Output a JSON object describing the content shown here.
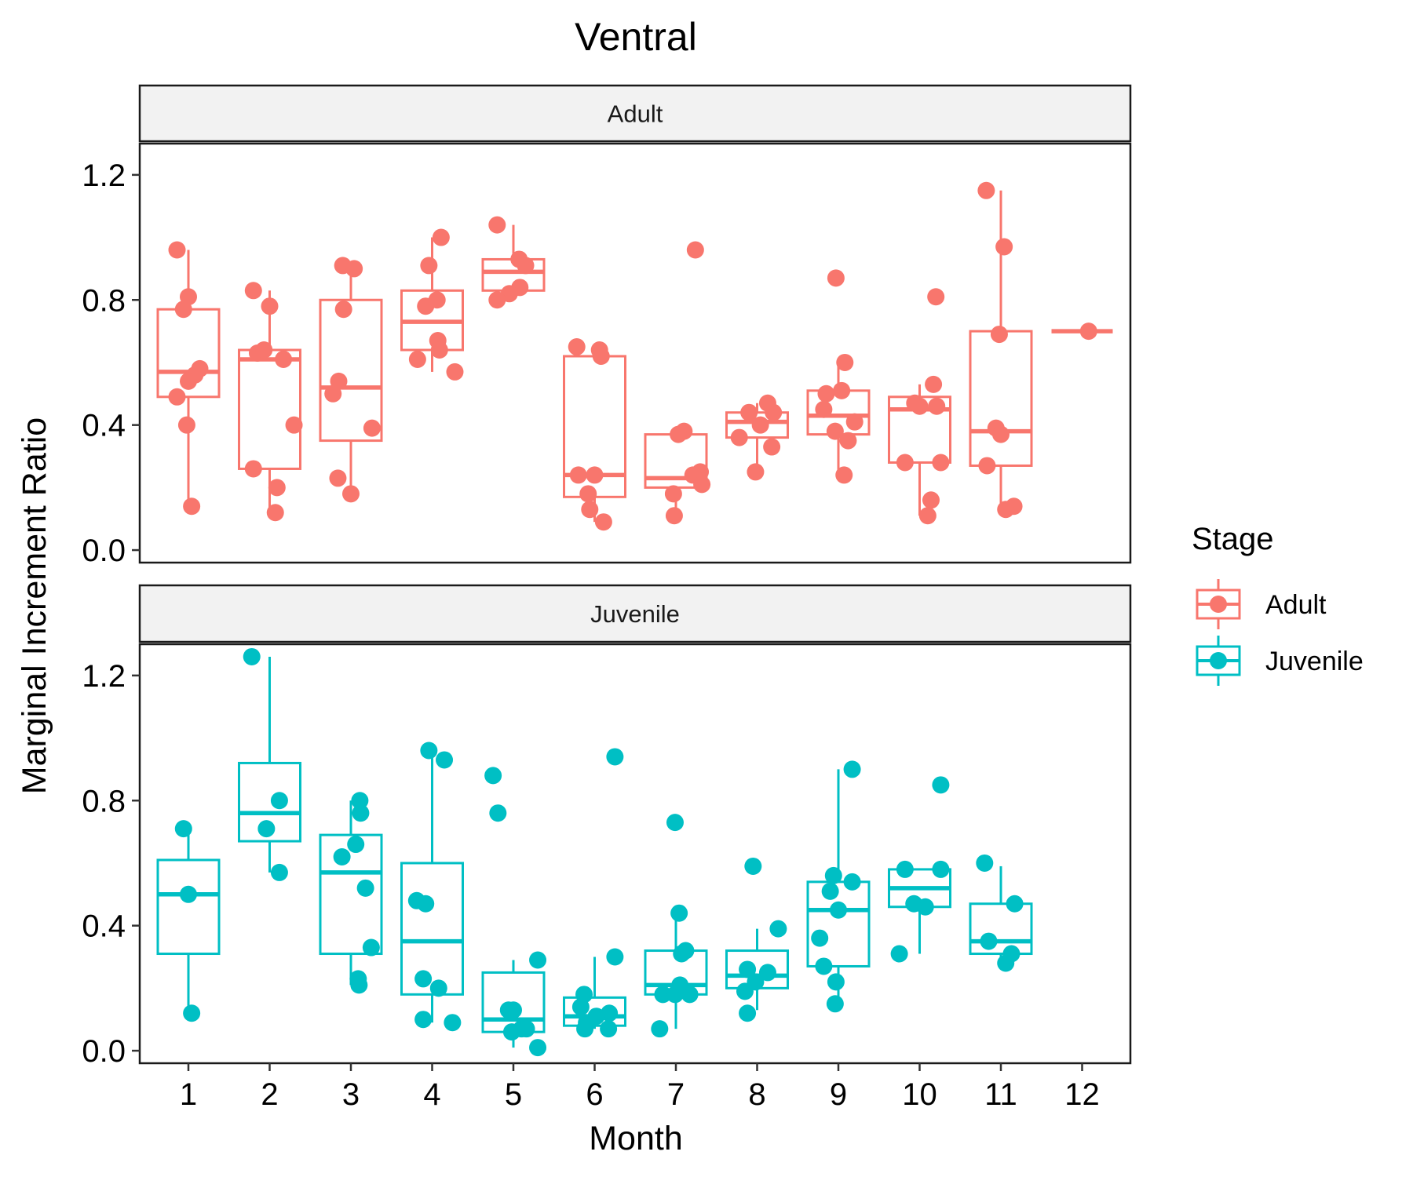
{
  "chart_data": {
    "type": "boxplot",
    "title": "Ventral",
    "xlabel": "Month",
    "ylabel": "Marginal Increment Ratio",
    "x_ticks": [
      "1",
      "2",
      "3",
      "4",
      "5",
      "6",
      "7",
      "8",
      "9",
      "10",
      "11",
      "12"
    ],
    "y_ticks": [
      "0.0",
      "0.4",
      "0.8",
      "1.2"
    ],
    "ylim": [
      -0.04,
      1.3
    ],
    "grid": false,
    "legend": {
      "title": "Stage",
      "position": "right",
      "entries": [
        {
          "label": "Adult",
          "color": "#F8766D"
        },
        {
          "label": "Juvenile",
          "color": "#00BFC4"
        }
      ]
    },
    "panels": [
      {
        "name": "Adult",
        "color": "#F8766D",
        "boxes": [
          {
            "month": 1,
            "min": 0.14,
            "q1": 0.49,
            "median": 0.57,
            "q3": 0.77,
            "max": 0.96
          },
          {
            "month": 2,
            "min": 0.12,
            "q1": 0.26,
            "median": 0.61,
            "q3": 0.64,
            "max": 0.83
          },
          {
            "month": 3,
            "min": 0.18,
            "q1": 0.35,
            "median": 0.52,
            "q3": 0.8,
            "max": 0.9
          },
          {
            "month": 4,
            "min": 0.57,
            "q1": 0.64,
            "median": 0.73,
            "q3": 0.83,
            "max": 1.0
          },
          {
            "month": 5,
            "min": 0.8,
            "q1": 0.83,
            "median": 0.89,
            "q3": 0.93,
            "max": 1.04
          },
          {
            "month": 6,
            "min": 0.09,
            "q1": 0.17,
            "median": 0.24,
            "q3": 0.62,
            "max": 0.65
          },
          {
            "month": 7,
            "min": 0.11,
            "q1": 0.2,
            "median": 0.23,
            "q3": 0.37,
            "max": 0.38
          },
          {
            "month": 8,
            "min": 0.25,
            "q1": 0.36,
            "median": 0.41,
            "q3": 0.44,
            "max": 0.47
          },
          {
            "month": 9,
            "min": 0.24,
            "q1": 0.37,
            "median": 0.43,
            "q3": 0.51,
            "max": 0.6
          },
          {
            "month": 10,
            "min": 0.11,
            "q1": 0.28,
            "median": 0.45,
            "q3": 0.49,
            "max": 0.53
          },
          {
            "month": 11,
            "min": 0.13,
            "q1": 0.27,
            "median": 0.38,
            "q3": 0.7,
            "max": 1.15
          },
          {
            "month": 12,
            "min": 0.7,
            "q1": 0.7,
            "median": 0.7,
            "q3": 0.7,
            "max": 0.7
          }
        ],
        "points": [
          [
            0.86,
            0.96
          ],
          [
            1.0,
            0.81
          ],
          [
            0.94,
            0.77
          ],
          [
            1.14,
            0.58
          ],
          [
            1.08,
            0.56
          ],
          [
            1.0,
            0.54
          ],
          [
            0.86,
            0.49
          ],
          [
            0.98,
            0.4
          ],
          [
            1.04,
            0.14
          ],
          [
            1.8,
            0.83
          ],
          [
            2.0,
            0.78
          ],
          [
            1.85,
            0.63
          ],
          [
            1.93,
            0.64
          ],
          [
            2.17,
            0.61
          ],
          [
            2.3,
            0.4
          ],
          [
            1.8,
            0.26
          ],
          [
            2.09,
            0.2
          ],
          [
            2.07,
            0.12
          ],
          [
            2.9,
            0.91
          ],
          [
            3.04,
            0.9
          ],
          [
            2.91,
            0.77
          ],
          [
            2.85,
            0.54
          ],
          [
            2.78,
            0.5
          ],
          [
            3.26,
            0.39
          ],
          [
            2.84,
            0.23
          ],
          [
            3.0,
            0.18
          ],
          [
            4.11,
            1.0
          ],
          [
            3.96,
            0.91
          ],
          [
            4.06,
            0.8
          ],
          [
            3.92,
            0.78
          ],
          [
            4.07,
            0.67
          ],
          [
            4.09,
            0.64
          ],
          [
            3.82,
            0.61
          ],
          [
            4.28,
            0.57
          ],
          [
            4.8,
            1.04
          ],
          [
            5.07,
            0.93
          ],
          [
            5.15,
            0.91
          ],
          [
            5.08,
            0.84
          ],
          [
            4.95,
            0.82
          ],
          [
            4.8,
            0.8
          ],
          [
            5.78,
            0.65
          ],
          [
            6.06,
            0.64
          ],
          [
            6.08,
            0.62
          ],
          [
            5.8,
            0.24
          ],
          [
            6.0,
            0.24
          ],
          [
            5.92,
            0.18
          ],
          [
            5.94,
            0.13
          ],
          [
            6.11,
            0.09
          ],
          [
            7.24,
            0.96
          ],
          [
            7.1,
            0.38
          ],
          [
            7.03,
            0.37
          ],
          [
            7.3,
            0.25
          ],
          [
            7.21,
            0.24
          ],
          [
            7.32,
            0.21
          ],
          [
            6.97,
            0.18
          ],
          [
            6.98,
            0.11
          ],
          [
            7.9,
            0.44
          ],
          [
            8.2,
            0.44
          ],
          [
            8.13,
            0.47
          ],
          [
            8.04,
            0.4
          ],
          [
            7.78,
            0.36
          ],
          [
            8.18,
            0.33
          ],
          [
            7.98,
            0.25
          ],
          [
            8.97,
            0.87
          ],
          [
            9.08,
            0.6
          ],
          [
            8.85,
            0.5
          ],
          [
            9.04,
            0.51
          ],
          [
            8.82,
            0.45
          ],
          [
            9.2,
            0.41
          ],
          [
            8.96,
            0.38
          ],
          [
            9.12,
            0.35
          ],
          [
            9.07,
            0.24
          ],
          [
            10.2,
            0.81
          ],
          [
            10.17,
            0.53
          ],
          [
            9.94,
            0.47
          ],
          [
            10.0,
            0.46
          ],
          [
            10.21,
            0.46
          ],
          [
            9.82,
            0.28
          ],
          [
            10.26,
            0.28
          ],
          [
            10.14,
            0.16
          ],
          [
            10.1,
            0.11
          ],
          [
            10.82,
            1.15
          ],
          [
            11.04,
            0.97
          ],
          [
            10.98,
            0.69
          ],
          [
            10.94,
            0.39
          ],
          [
            11.0,
            0.37
          ],
          [
            10.83,
            0.27
          ],
          [
            11.16,
            0.14
          ],
          [
            11.06,
            0.13
          ],
          [
            12.08,
            0.7
          ]
        ]
      },
      {
        "name": "Juvenile",
        "color": "#00BFC4",
        "boxes": [
          {
            "month": 1,
            "min": 0.12,
            "q1": 0.31,
            "median": 0.5,
            "q3": 0.61,
            "max": 0.71
          },
          {
            "month": 2,
            "min": 0.57,
            "q1": 0.67,
            "median": 0.76,
            "q3": 0.92,
            "max": 1.26
          },
          {
            "month": 3,
            "min": 0.21,
            "q1": 0.31,
            "median": 0.57,
            "q3": 0.69,
            "max": 0.8
          },
          {
            "month": 4,
            "min": 0.09,
            "q1": 0.18,
            "median": 0.35,
            "q3": 0.6,
            "max": 0.96
          },
          {
            "month": 5,
            "min": 0.01,
            "q1": 0.06,
            "median": 0.1,
            "q3": 0.25,
            "max": 0.29
          },
          {
            "month": 6,
            "min": 0.07,
            "q1": 0.08,
            "median": 0.11,
            "q3": 0.17,
            "max": 0.3
          },
          {
            "month": 7,
            "min": 0.07,
            "q1": 0.18,
            "median": 0.21,
            "q3": 0.32,
            "max": 0.44
          },
          {
            "month": 8,
            "min": 0.13,
            "q1": 0.2,
            "median": 0.24,
            "q3": 0.32,
            "max": 0.39
          },
          {
            "month": 9,
            "min": 0.15,
            "q1": 0.27,
            "median": 0.45,
            "q3": 0.54,
            "max": 0.9
          },
          {
            "month": 10,
            "min": 0.31,
            "q1": 0.46,
            "median": 0.52,
            "q3": 0.58,
            "max": 0.58
          },
          {
            "month": 11,
            "min": 0.28,
            "q1": 0.31,
            "median": 0.35,
            "q3": 0.47,
            "max": 0.59
          }
        ],
        "points": [
          [
            0.94,
            0.71
          ],
          [
            1.0,
            0.5
          ],
          [
            1.04,
            0.12
          ],
          [
            1.78,
            1.26
          ],
          [
            2.12,
            0.8
          ],
          [
            1.96,
            0.71
          ],
          [
            2.12,
            0.57
          ],
          [
            3.11,
            0.8
          ],
          [
            3.12,
            0.76
          ],
          [
            3.06,
            0.66
          ],
          [
            2.89,
            0.62
          ],
          [
            3.18,
            0.52
          ],
          [
            3.25,
            0.33
          ],
          [
            3.09,
            0.23
          ],
          [
            3.1,
            0.21
          ],
          [
            3.96,
            0.96
          ],
          [
            4.15,
            0.93
          ],
          [
            3.81,
            0.48
          ],
          [
            3.92,
            0.47
          ],
          [
            3.89,
            0.23
          ],
          [
            4.08,
            0.2
          ],
          [
            3.89,
            0.1
          ],
          [
            4.25,
            0.09
          ],
          [
            4.75,
            0.88
          ],
          [
            4.81,
            0.76
          ],
          [
            5.3,
            0.29
          ],
          [
            4.94,
            0.13
          ],
          [
            5.0,
            0.13
          ],
          [
            5.1,
            0.07
          ],
          [
            4.98,
            0.06
          ],
          [
            5.16,
            0.07
          ],
          [
            5.3,
            0.01
          ],
          [
            6.25,
            0.94
          ],
          [
            6.25,
            0.3
          ],
          [
            5.87,
            0.18
          ],
          [
            5.83,
            0.14
          ],
          [
            6.18,
            0.12
          ],
          [
            6.02,
            0.11
          ],
          [
            5.9,
            0.09
          ],
          [
            5.88,
            0.07
          ],
          [
            6.17,
            0.07
          ],
          [
            6.99,
            0.73
          ],
          [
            7.04,
            0.44
          ],
          [
            7.12,
            0.32
          ],
          [
            7.07,
            0.31
          ],
          [
            7.05,
            0.21
          ],
          [
            6.84,
            0.18
          ],
          [
            6.99,
            0.18
          ],
          [
            7.17,
            0.18
          ],
          [
            6.8,
            0.07
          ],
          [
            7.95,
            0.59
          ],
          [
            8.26,
            0.39
          ],
          [
            7.88,
            0.26
          ],
          [
            7.98,
            0.22
          ],
          [
            8.13,
            0.25
          ],
          [
            7.85,
            0.19
          ],
          [
            7.88,
            0.12
          ],
          [
            9.17,
            0.9
          ],
          [
            8.94,
            0.56
          ],
          [
            9.17,
            0.54
          ],
          [
            8.9,
            0.51
          ],
          [
            9.0,
            0.45
          ],
          [
            8.77,
            0.36
          ],
          [
            8.82,
            0.27
          ],
          [
            8.97,
            0.22
          ],
          [
            8.96,
            0.15
          ],
          [
            10.26,
            0.85
          ],
          [
            9.82,
            0.58
          ],
          [
            10.26,
            0.58
          ],
          [
            9.93,
            0.47
          ],
          [
            10.07,
            0.46
          ],
          [
            9.75,
            0.31
          ],
          [
            10.8,
            0.6
          ],
          [
            11.17,
            0.47
          ],
          [
            10.85,
            0.35
          ],
          [
            11.13,
            0.31
          ],
          [
            11.06,
            0.28
          ]
        ]
      }
    ]
  }
}
